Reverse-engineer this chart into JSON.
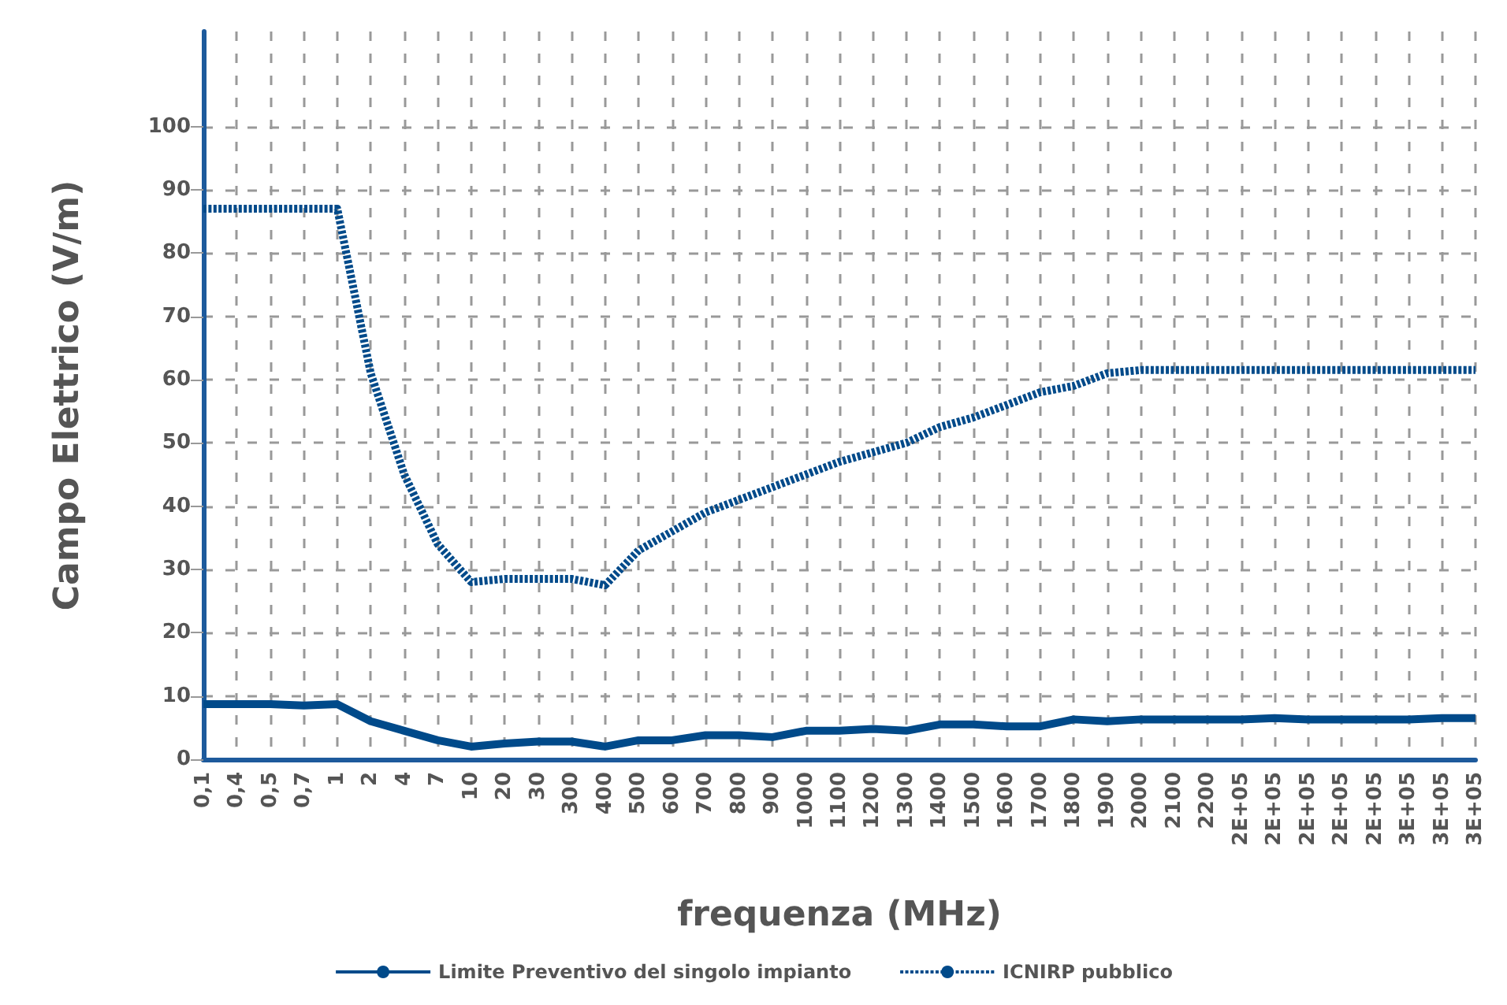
{
  "chart_data": {
    "type": "line",
    "xlabel": "frequenza (MHz)",
    "ylabel": "Campo Elettrico (V/m)",
    "categories": [
      "0,1",
      "0,4",
      "0,5",
      "0,7",
      "1",
      "2",
      "4",
      "7",
      "10",
      "20",
      "30",
      "300",
      "400",
      "500",
      "600",
      "700",
      "800",
      "900",
      "1000",
      "1100",
      "1200",
      "1300",
      "1400",
      "1500",
      "1600",
      "1700",
      "1800",
      "1900",
      "2000",
      "2100",
      "2200",
      "2E+05",
      "2E+05",
      "2E+05",
      "2E+05",
      "2E+05",
      "3E+05",
      "3E+05",
      "3E+05"
    ],
    "series": [
      {
        "name": "Limite Preventivo del singolo impianto",
        "color": "#004a8a",
        "line_style": "solid",
        "values": [
          8.7,
          8.7,
          8.7,
          8.5,
          8.7,
          6,
          4.5,
          3,
          2,
          2.5,
          2.8,
          2.8,
          2,
          3,
          3,
          3.8,
          3.8,
          3.5,
          4.5,
          4.5,
          4.8,
          4.5,
          5.5,
          5.5,
          5.2,
          5.2,
          6.3,
          6,
          6.3,
          6.3,
          6.3,
          6.3,
          6.5,
          6.3,
          6.3,
          6.3,
          6.3,
          6.5,
          6.5
        ]
      },
      {
        "name": "ICNIRP pubblico",
        "color": "#004a8a",
        "line_style": "dotted",
        "values": [
          87,
          87,
          87,
          87,
          87,
          61,
          45,
          34,
          28,
          28.5,
          28.5,
          28.5,
          27.5,
          33,
          36,
          39,
          41,
          43,
          45,
          47,
          48.5,
          50,
          52.5,
          54,
          56,
          58,
          59,
          61,
          61.5,
          61.5,
          61.5,
          61.5,
          61.5,
          61.5,
          61.5,
          61.5,
          61.5,
          61.5,
          61.5
        ]
      }
    ],
    "ylim": [
      0,
      115
    ],
    "yticks": [
      0,
      10,
      20,
      30,
      40,
      50,
      60,
      70,
      80,
      90,
      100
    ],
    "grid": true,
    "legend": "bottom",
    "marker": "none"
  }
}
